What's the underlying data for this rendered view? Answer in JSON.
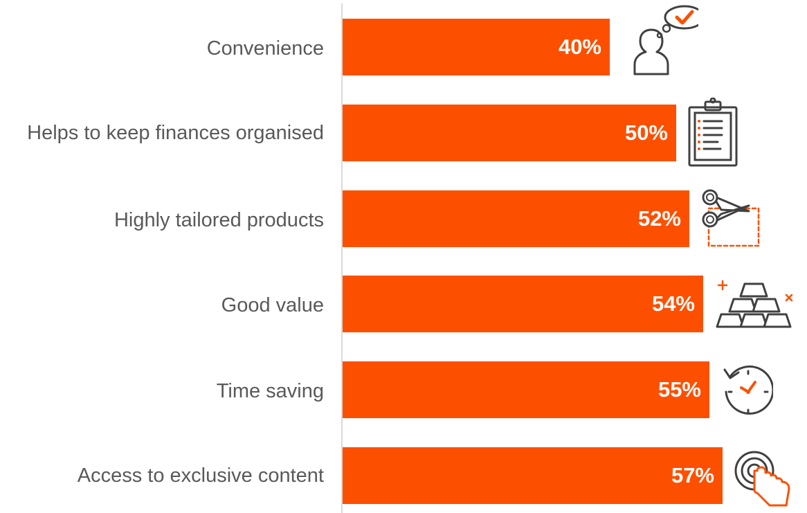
{
  "chart_data": {
    "type": "bar",
    "orientation": "horizontal",
    "categories": [
      "Convenience",
      "Helps to keep finances organised",
      "Highly tailored products",
      "Good value",
      "Time saving",
      "Access to exclusive content"
    ],
    "values": [
      40,
      50,
      52,
      54,
      55,
      57
    ],
    "value_labels": [
      "40%",
      "50%",
      "52%",
      "54%",
      "55%",
      "57%"
    ],
    "unit": "%",
    "xlim": [
      0,
      100
    ],
    "grid": false,
    "legend": "none",
    "icons": [
      "thinking-person-icon",
      "clipboard-icon",
      "scissors-icon",
      "gold-bars-icon",
      "clock-icon",
      "target-tap-icon"
    ]
  },
  "colors": {
    "bar": "#fc5000",
    "label": "#595959",
    "value_label": "#ffffff",
    "axis": "#d9d9d9",
    "icon_stroke": "#404040",
    "icon_accent": "#fc5000"
  }
}
